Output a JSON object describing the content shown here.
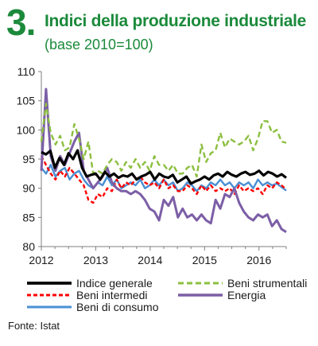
{
  "header": {
    "number": "3.",
    "title": "Indici della produzione industriale",
    "subtitle": "(base 2010=100)"
  },
  "source": "Fonte: Istat",
  "colors": {
    "title": "#1b8a3b",
    "axis": "#7f7f7f"
  },
  "chart_data": {
    "type": "line",
    "title": "Indici della produzione industriale",
    "subtitle": "(base 2010=100)",
    "xlabel": "",
    "ylabel": "",
    "xlim": [
      2012,
      2016.5
    ],
    "ylim": [
      80,
      110
    ],
    "yticks": [
      80,
      85,
      90,
      95,
      100,
      105,
      110
    ],
    "xticks": [
      2012,
      2013,
      2014,
      2015,
      2016
    ],
    "xtick_labels": [
      "2012",
      "2013",
      "2014",
      "2015",
      "2016"
    ],
    "ytick_labels": [
      "80",
      "85",
      "90",
      "95",
      "100",
      "105",
      "110"
    ],
    "grid": false,
    "legend_position": "bottom",
    "series": [
      {
        "name": "Indice generale",
        "color": "#000000",
        "dash": "solid",
        "width": 3.2,
        "start": 2012,
        "step_months": 1,
        "values": [
          96.2,
          95.8,
          96.4,
          93.5,
          95.2,
          94.0,
          96.0,
          95.0,
          96.5,
          93.5,
          92.0,
          92.3,
          92.5,
          91.5,
          92.8,
          92.0,
          92.5,
          91.8,
          92.2,
          92.0,
          92.5,
          91.5,
          92.0,
          92.3,
          92.8,
          91.5,
          92.5,
          92.0,
          91.8,
          92.3,
          91.0,
          91.5,
          92.0,
          90.8,
          91.2,
          91.5,
          92.0,
          91.5,
          92.2,
          92.5,
          92.0,
          92.8,
          92.3,
          92.0,
          92.5,
          92.8,
          92.3,
          92.5,
          93.0,
          92.2,
          92.8,
          92.5,
          92.0,
          92.4,
          91.8
        ]
      },
      {
        "name": "Beni strumentali",
        "color": "#8cbf3f",
        "dash": "7,4",
        "width": 2.4,
        "start": 2012,
        "step_months": 1,
        "values": [
          98.0,
          104.5,
          99.5,
          97.5,
          99.0,
          96.5,
          97.0,
          101.0,
          98.5,
          95.0,
          98.0,
          92.5,
          93.0,
          92.5,
          94.0,
          95.0,
          94.5,
          93.0,
          94.5,
          93.5,
          95.0,
          93.5,
          94.5,
          93.0,
          95.5,
          94.0,
          94.0,
          93.0,
          94.0,
          92.5,
          92.5,
          93.5,
          94.0,
          92.0,
          97.5,
          94.5,
          96.0,
          96.5,
          99.5,
          97.0,
          98.5,
          98.0,
          97.5,
          98.0,
          99.0,
          96.5,
          98.5,
          101.5,
          101.5,
          99.5,
          100.0,
          98.0,
          97.8
        ]
      },
      {
        "name": "Beni intermedi",
        "color": "#ff0000",
        "dash": "5,3",
        "width": 2.4,
        "start": 2012,
        "step_months": 1,
        "values": [
          95.5,
          94.0,
          92.5,
          91.5,
          93.0,
          92.0,
          93.5,
          92.5,
          91.5,
          90.5,
          88.0,
          87.5,
          89.0,
          88.5,
          90.0,
          89.5,
          91.5,
          90.0,
          91.0,
          90.5,
          91.5,
          92.0,
          91.0,
          90.5,
          91.0,
          90.0,
          91.5,
          90.0,
          90.5,
          89.5,
          89.5,
          90.5,
          90.0,
          89.0,
          90.5,
          89.5,
          90.5,
          89.5,
          90.0,
          89.5,
          90.0,
          89.0,
          90.5,
          89.5,
          90.0,
          89.5,
          90.0,
          89.0,
          90.5,
          90.0,
          91.0,
          90.5,
          89.8
        ]
      },
      {
        "name": "Energia",
        "color": "#7c5ea6",
        "dash": "solid",
        "width": 3.0,
        "start": 2012,
        "step_months": 1,
        "values": [
          93.0,
          107.0,
          95.5,
          93.0,
          95.5,
          94.0,
          96.0,
          98.0,
          99.5,
          93.0,
          91.5,
          90.0,
          91.0,
          92.0,
          93.5,
          91.0,
          90.0,
          89.5,
          89.5,
          89.0,
          89.5,
          89.0,
          88.0,
          86.5,
          86.0,
          84.5,
          88.0,
          87.0,
          88.5,
          85.0,
          86.5,
          85.0,
          85.5,
          84.5,
          85.5,
          84.5,
          84.0,
          88.0,
          86.5,
          89.0,
          88.5,
          90.0,
          87.5,
          86.0,
          85.0,
          84.5,
          85.5,
          85.0,
          85.5,
          83.5,
          84.5,
          83.0,
          82.5
        ]
      },
      {
        "name": "Beni di consumo",
        "color": "#4a8fd4",
        "dash": "solid",
        "width": 2.4,
        "start": 2012,
        "step_months": 1,
        "values": [
          93.5,
          92.5,
          94.0,
          92.0,
          93.0,
          93.5,
          91.5,
          92.5,
          93.0,
          91.5,
          90.5,
          90.0,
          91.0,
          90.5,
          92.0,
          90.5,
          91.5,
          90.0,
          90.5,
          91.0,
          90.5,
          91.5,
          90.0,
          90.5,
          91.5,
          90.5,
          91.5,
          90.5,
          91.0,
          89.5,
          90.0,
          91.0,
          90.5,
          89.5,
          90.5,
          90.0,
          91.0,
          90.5,
          91.5,
          90.5,
          91.0,
          90.0,
          91.0,
          90.5,
          91.0,
          90.0,
          91.5,
          90.5,
          91.0,
          90.5,
          90.8,
          90.2,
          89.6
        ]
      }
    ]
  }
}
